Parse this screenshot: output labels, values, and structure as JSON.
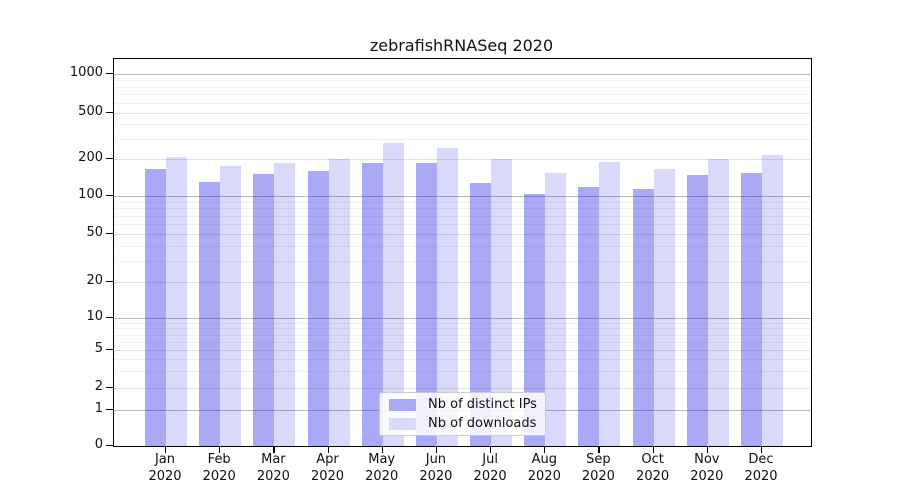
{
  "figure": {
    "title": "zebrafishRNASeq 2020",
    "background_color": "#ffffff"
  },
  "chart_data": {
    "type": "bar",
    "title": "zebrafishRNASeq 2020",
    "categories": [
      {
        "month": "Jan",
        "year": "2020"
      },
      {
        "month": "Feb",
        "year": "2020"
      },
      {
        "month": "Mar",
        "year": "2020"
      },
      {
        "month": "Apr",
        "year": "2020"
      },
      {
        "month": "May",
        "year": "2020"
      },
      {
        "month": "Jun",
        "year": "2020"
      },
      {
        "month": "Jul",
        "year": "2020"
      },
      {
        "month": "Aug",
        "year": "2020"
      },
      {
        "month": "Sep",
        "year": "2020"
      },
      {
        "month": "Oct",
        "year": "2020"
      },
      {
        "month": "Nov",
        "year": "2020"
      },
      {
        "month": "Dec",
        "year": "2020"
      }
    ],
    "series": [
      {
        "name": "Nb of distinct IPs",
        "color": "#a9a9f6",
        "values": [
          166,
          131,
          151,
          161,
          186,
          185,
          128,
          104,
          119,
          115,
          148,
          155
        ]
      },
      {
        "name": "Nb of downloads",
        "color": "#d9d9f9",
        "values": [
          210,
          175,
          186,
          200,
          275,
          250,
          202,
          155,
          190,
          167,
          200,
          216
        ]
      }
    ],
    "xlabel": "",
    "ylabel": "",
    "yscale": "symlog-like",
    "y_ticks": [
      0,
      1,
      2,
      5,
      10,
      20,
      50,
      100,
      200,
      500,
      1000
    ],
    "ylim": [
      0,
      1300
    ],
    "grid": "horizontal major and minor gridlines",
    "legend_position": "inside lower-center"
  },
  "legend": {
    "items": [
      {
        "label": "Nb of distinct IPs",
        "color": "#a9a9f6"
      },
      {
        "label": "Nb of downloads",
        "color": "#d9d9f9"
      }
    ]
  }
}
